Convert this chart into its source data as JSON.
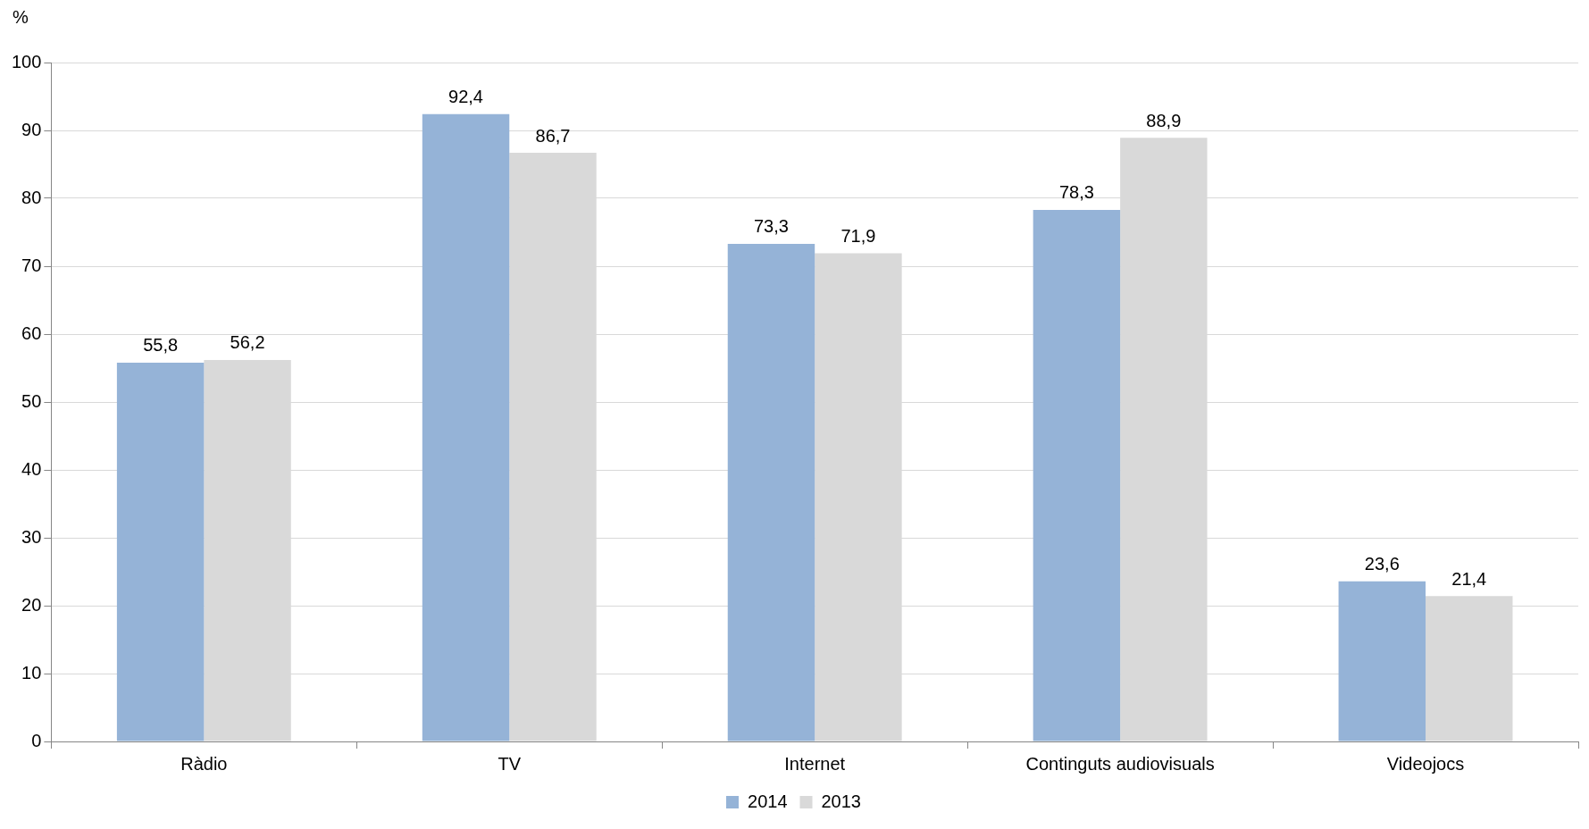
{
  "chart_data": {
    "type": "bar",
    "ylabel": "%",
    "categories": [
      "Ràdio",
      "TV",
      "Internet",
      "Continguts audiovisuals",
      "Videojocs"
    ],
    "series": [
      {
        "name": "2014",
        "color": "#95b3d7",
        "values": [
          55.8,
          92.4,
          73.3,
          78.3,
          23.6
        ],
        "value_labels": [
          "55,8",
          "92,4",
          "73,3",
          "78,3",
          "23,6"
        ]
      },
      {
        "name": "2013",
        "color": "#d9d9d9",
        "values": [
          56.2,
          86.7,
          71.9,
          88.9,
          21.4
        ],
        "value_labels": [
          "56,2",
          "86,7",
          "71,9",
          "88,9",
          "21,4"
        ]
      }
    ],
    "ylim": [
      0,
      100
    ],
    "yticks": [
      0,
      10,
      20,
      30,
      40,
      50,
      60,
      70,
      80,
      90,
      100
    ],
    "grid": "y",
    "legend": "bottom"
  }
}
